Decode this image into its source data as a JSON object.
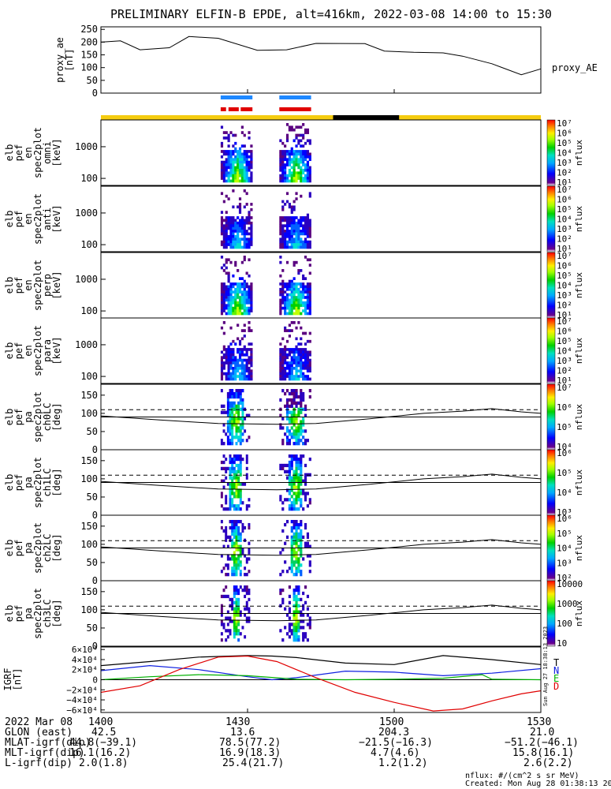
{
  "title": "PRELIMINARY ELFIN-B EPDE, alt=416km, 2022-03-08 14:00 to 15:30",
  "footer": {
    "nflux_units": "nflux: #/(cm^2 s sr MeV)",
    "created": "Created: Mon Aug 28 01:38:13 2023",
    "side_stamp": "Sun Aug 27 18:38:13 2023"
  },
  "row_labels": {
    "date": "2022 Mar 08",
    "glon": "GLON (east)",
    "mlat": "MLAT-igrf(dip)",
    "mlt": "MLT-igrf(dip)",
    "l": "L-igrf(dip)"
  },
  "ticks": [
    {
      "time": "1400",
      "glon": "42.5",
      "mlat": "44.8(−39.1)",
      "mlt": "16.1(16.2)",
      "l": "2.0(1.8)"
    },
    {
      "time": "1430",
      "glon": "13.6",
      "mlat": "78.5(77.2)",
      "mlt": "16.9(18.3)",
      "l": "25.4(21.7)"
    },
    {
      "time": "1500",
      "glon": "204.3",
      "mlat": "−21.5(−16.3)",
      "mlt": "4.7(4.6)",
      "l": "1.2(1.2)"
    },
    {
      "time": "1530",
      "glon": "21.0",
      "mlat": "−51.2(−46.1)",
      "mlt": "15.8(16.1)",
      "l": "2.6(2.2)"
    }
  ],
  "panels": [
    {
      "id": "proxy_ae",
      "ylabel": [
        "proxy_ae",
        "[nT]"
      ],
      "legend": "proxy_AE",
      "yticks": [
        "250",
        "200",
        "150",
        "100",
        "50",
        "0"
      ]
    },
    {
      "id": "omni",
      "ylabel": [
        "elb",
        "pef",
        "en",
        "spec2plot",
        "omni",
        "[keV]"
      ],
      "yticks": [
        "1000",
        "100"
      ],
      "colorbar": {
        "label": "nflux",
        "ticks": [
          "10⁷",
          "10⁶",
          "10⁵",
          "10⁴",
          "10³",
          "10²",
          "10¹"
        ]
      }
    },
    {
      "id": "anti",
      "ylabel": [
        "elb",
        "pef",
        "en",
        "spec2plot",
        "anti",
        "[keV]"
      ],
      "yticks": [
        "1000",
        "100"
      ],
      "colorbar": {
        "label": "nflux",
        "ticks": [
          "10⁷",
          "10⁶",
          "10⁵",
          "10⁴",
          "10³",
          "10²",
          "10¹"
        ]
      }
    },
    {
      "id": "perp",
      "ylabel": [
        "elb",
        "pef",
        "en",
        "spec2plot",
        "perp",
        "[keV]"
      ],
      "yticks": [
        "1000",
        "100"
      ],
      "colorbar": {
        "label": "nflux",
        "ticks": [
          "10⁷",
          "10⁶",
          "10⁵",
          "10⁴",
          "10³",
          "10²",
          "10¹"
        ]
      }
    },
    {
      "id": "para",
      "ylabel": [
        "elb",
        "pef",
        "en",
        "spec2plot",
        "para",
        "[keV]"
      ],
      "yticks": [
        "1000",
        "100"
      ],
      "colorbar": {
        "label": "nflux",
        "ticks": [
          "10⁷",
          "10⁶",
          "10⁵",
          "10⁴",
          "10³",
          "10²",
          "10¹"
        ]
      }
    },
    {
      "id": "ch0LC",
      "ylabel": [
        "elb",
        "pef",
        "pa",
        "spec2plot",
        "ch0LC",
        "[deg]"
      ],
      "yticks": [
        "150",
        "100",
        "50",
        "0"
      ],
      "colorbar": {
        "label": "nflux",
        "ticks": [
          "10⁷",
          "10⁶",
          "10⁵",
          "10⁴"
        ]
      }
    },
    {
      "id": "ch1LC",
      "ylabel": [
        "elb",
        "pef",
        "pa",
        "spec2plot",
        "ch1LC",
        "[deg]"
      ],
      "yticks": [
        "150",
        "100",
        "50",
        "0"
      ],
      "colorbar": {
        "label": "nflux",
        "ticks": [
          "10⁶",
          "10⁵",
          "10⁴",
          "10³"
        ]
      }
    },
    {
      "id": "ch2LC",
      "ylabel": [
        "elb",
        "pef",
        "pa",
        "spec2plot",
        "ch2LC",
        "[deg]"
      ],
      "yticks": [
        "150",
        "100",
        "50",
        "0"
      ],
      "colorbar": {
        "label": "nflux",
        "ticks": [
          "10⁶",
          "10⁵",
          "10⁴",
          "10³",
          "10²"
        ]
      }
    },
    {
      "id": "ch3LC",
      "ylabel": [
        "elb",
        "pef",
        "pa",
        "spec2plot",
        "ch3LC",
        "[deg]"
      ],
      "yticks": [
        "150",
        "100",
        "50",
        "0"
      ],
      "colorbar": {
        "label": "nflux",
        "ticks": [
          "10000",
          "1000",
          "100",
          "10"
        ]
      }
    },
    {
      "id": "igrf",
      "ylabel": [
        "IGRF",
        "[nT]"
      ],
      "yticks": [
        "6×10⁴",
        "4×10⁴",
        "2×10⁴",
        "0",
        "−2×10⁴",
        "−4×10⁴",
        "−6×10⁴"
      ],
      "legend": [
        {
          "name": "T",
          "color": "#000000"
        },
        {
          "name": "N",
          "color": "#1020e0"
        },
        {
          "name": "E",
          "color": "#00b000"
        },
        {
          "name": "D",
          "color": "#e00000"
        }
      ]
    }
  ],
  "chart_data": {
    "type": "line",
    "x_range_min": [
      0,
      90
    ],
    "proxy_ae": {
      "ylim": [
        0,
        260
      ],
      "x": [
        0,
        4,
        8,
        14,
        18,
        24,
        32,
        38,
        44,
        54,
        58,
        64,
        70,
        74,
        80,
        86,
        90
      ],
      "y": [
        200,
        205,
        170,
        178,
        222,
        215,
        168,
        170,
        195,
        194,
        165,
        160,
        158,
        145,
        115,
        72,
        95
      ]
    },
    "orbit_bar": {
      "dark_segments_min": [
        [
          47.5,
          61
        ]
      ],
      "light_color": "#f5cc10",
      "dark_color": "#000000"
    },
    "science_zones": {
      "segments_min": [
        [
          24.5,
          31
        ],
        [
          36.5,
          43
        ]
      ]
    },
    "energy_spectra": {
      "ylim_keV": [
        60,
        7000
      ],
      "bursts_min": [
        [
          24.5,
          31
        ],
        [
          36.5,
          43
        ]
      ]
    },
    "pitch_angle": {
      "ylim_deg": [
        0,
        180
      ],
      "loss_cone_dashed_deg": 110
    },
    "igrf": {
      "ylim_nT": [
        -65000,
        65000
      ],
      "series": [
        {
          "name": "T",
          "color": "#000000",
          "x": [
            0,
            10,
            20,
            30,
            35,
            40,
            50,
            60,
            70,
            80,
            90
          ],
          "y": [
            28000,
            36000,
            45000,
            48000,
            47000,
            44000,
            33000,
            30000,
            48000,
            40000,
            30000
          ]
        },
        {
          "name": "N",
          "color": "#1020e0",
          "x": [
            0,
            10,
            20,
            30,
            35,
            40,
            50,
            60,
            70,
            80,
            90
          ],
          "y": [
            18000,
            28000,
            20000,
            6000,
            0,
            4000,
            17000,
            15000,
            8000,
            13000,
            22000
          ]
        },
        {
          "name": "E",
          "color": "#00b000",
          "x": [
            0,
            10,
            20,
            30,
            40,
            50,
            60,
            70,
            78,
            80,
            90
          ],
          "y": [
            0,
            6000,
            10000,
            8000,
            1000,
            0,
            1000,
            3000,
            10000,
            1000,
            0
          ]
        },
        {
          "name": "D",
          "color": "#e00000",
          "x": [
            0,
            8,
            16,
            24,
            30,
            36,
            44,
            52,
            60,
            68,
            74,
            80,
            86,
            90
          ],
          "y": [
            -25000,
            -12000,
            20000,
            45000,
            47000,
            36000,
            4000,
            -25000,
            -45000,
            -62000,
            -58000,
            -42000,
            -28000,
            -22000
          ]
        }
      ]
    }
  }
}
